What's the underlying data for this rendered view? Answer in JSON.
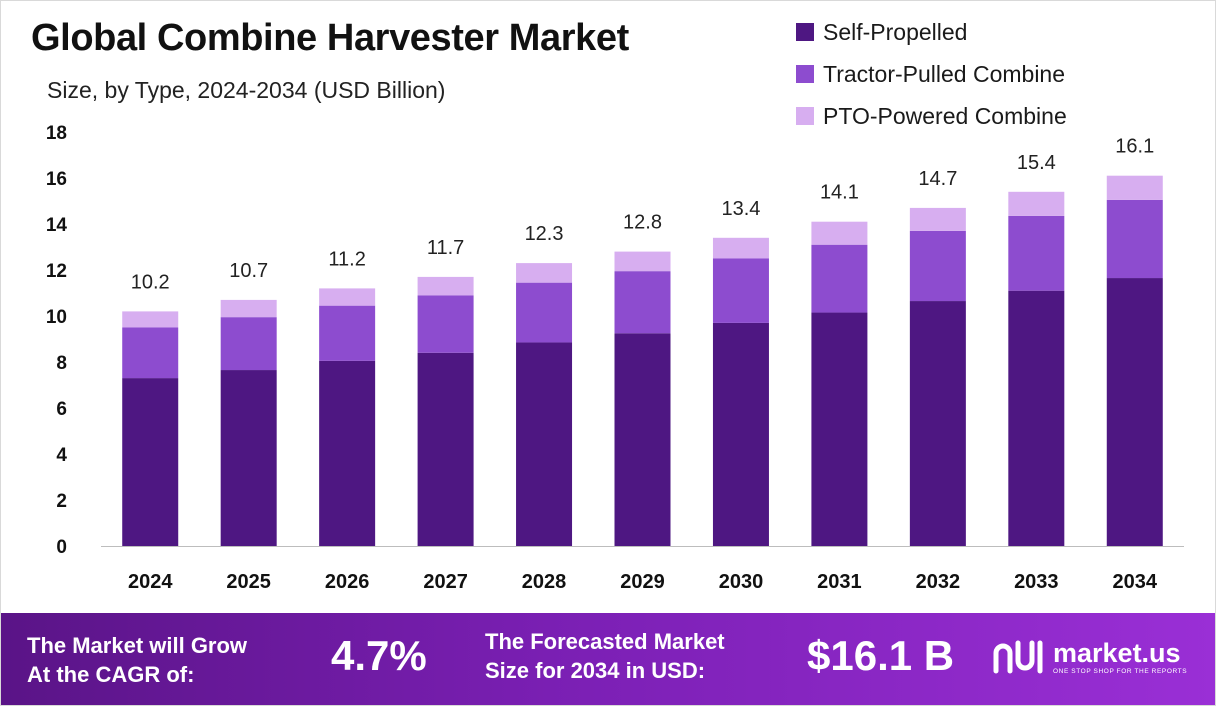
{
  "header": {
    "title": "Global Combine Harvester Market",
    "subtitle": "Size, by Type, 2024-2034 (USD Billion)"
  },
  "legend": [
    {
      "label": "Self-Propelled",
      "color": "#4e1782"
    },
    {
      "label": "Tractor-Pulled Combine",
      "color": "#8d4ccf"
    },
    {
      "label": "PTO-Powered Combine",
      "color": "#d7aef0"
    }
  ],
  "chart_data": {
    "type": "bar",
    "stacked": true,
    "title": "Global Combine Harvester Market",
    "subtitle": "Size, by Type, 2024-2034 (USD Billion)",
    "categories": [
      "2024",
      "2025",
      "2026",
      "2027",
      "2028",
      "2029",
      "2030",
      "2031",
      "2032",
      "2033",
      "2034"
    ],
    "series": [
      {
        "name": "Self-Propelled",
        "color": "#4e1782",
        "values": [
          7.3,
          7.65,
          8.05,
          8.4,
          8.85,
          9.25,
          9.7,
          10.15,
          10.65,
          11.1,
          11.65
        ]
      },
      {
        "name": "Tractor-Pulled Combine",
        "color": "#8d4ccf",
        "values": [
          2.2,
          2.3,
          2.4,
          2.5,
          2.6,
          2.7,
          2.8,
          2.95,
          3.05,
          3.25,
          3.4
        ]
      },
      {
        "name": "PTO-Powered Combine",
        "color": "#d7aef0",
        "values": [
          0.7,
          0.75,
          0.75,
          0.8,
          0.85,
          0.85,
          0.9,
          1.0,
          1.0,
          1.05,
          1.05
        ]
      }
    ],
    "totals": [
      "10.2",
      "10.7",
      "11.2",
      "11.7",
      "12.3",
      "12.8",
      "13.4",
      "14.1",
      "14.7",
      "15.4",
      "16.1"
    ],
    "ylim": [
      0,
      18
    ],
    "yticks": [
      0,
      2,
      4,
      6,
      8,
      10,
      12,
      14,
      16,
      18
    ],
    "grid": false,
    "legend_position": "top-right"
  },
  "footer": {
    "cagr_line1": "The Market will Grow",
    "cagr_line2": "At the CAGR of:",
    "cagr_value": "4.7%",
    "forecast_line1": "The Forecasted Market",
    "forecast_line2": "Size for 2034 in USD:",
    "forecast_value": "$16.1 B",
    "brand_name": "market.us",
    "brand_tagline": "ONE STOP SHOP FOR THE REPORTS"
  }
}
